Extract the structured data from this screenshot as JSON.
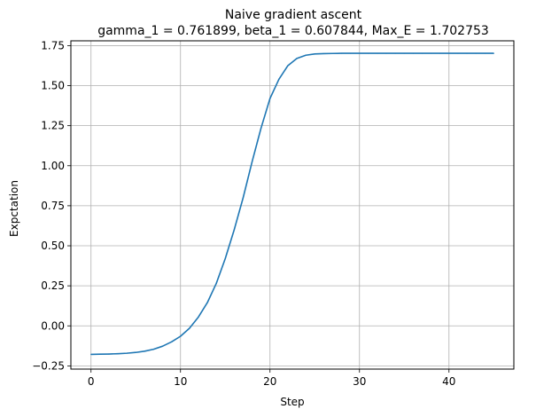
{
  "chart_data": {
    "type": "line",
    "title": "Naive gradient ascent",
    "subtitle": "gamma_1 = 0.761899, beta_1 = 0.607844, Max_E = 1.702753",
    "xlabel": "Step",
    "ylabel": "Expctation",
    "xlim": [
      -2.25,
      47.25
    ],
    "ylim": [
      -0.27,
      1.78
    ],
    "xticks": [
      0,
      10,
      20,
      30,
      40
    ],
    "yticks": [
      -0.25,
      0.0,
      0.25,
      0.5,
      0.75,
      1.0,
      1.25,
      1.5,
      1.75
    ],
    "xtick_labels": [
      "0",
      "10",
      "20",
      "30",
      "40"
    ],
    "ytick_labels": [
      "−0.25",
      "0.00",
      "0.25",
      "0.50",
      "0.75",
      "1.00",
      "1.25",
      "1.50",
      "1.75"
    ],
    "grid": true,
    "series": [
      {
        "color": "#1f77b4",
        "x": [
          0,
          1,
          2,
          3,
          4,
          5,
          6,
          7,
          8,
          9,
          10,
          11,
          12,
          13,
          14,
          15,
          16,
          17,
          18,
          19,
          20,
          21,
          22,
          23,
          24,
          25,
          26,
          27,
          28,
          29,
          30,
          31,
          32,
          33,
          34,
          35,
          36,
          37,
          38,
          39,
          40,
          41,
          42,
          43,
          44,
          45
        ],
        "y": [
          -0.178,
          -0.177,
          -0.176,
          -0.174,
          -0.171,
          -0.166,
          -0.158,
          -0.146,
          -0.127,
          -0.1,
          -0.065,
          -0.015,
          0.055,
          0.145,
          0.265,
          0.42,
          0.6,
          0.8,
          1.025,
          1.235,
          1.42,
          1.54,
          1.625,
          1.67,
          1.69,
          1.698,
          1.7,
          1.701,
          1.702,
          1.702,
          1.702,
          1.702,
          1.702,
          1.702,
          1.702,
          1.702,
          1.702,
          1.702,
          1.702,
          1.702,
          1.702,
          1.702,
          1.702,
          1.702,
          1.702,
          1.702
        ]
      }
    ]
  }
}
